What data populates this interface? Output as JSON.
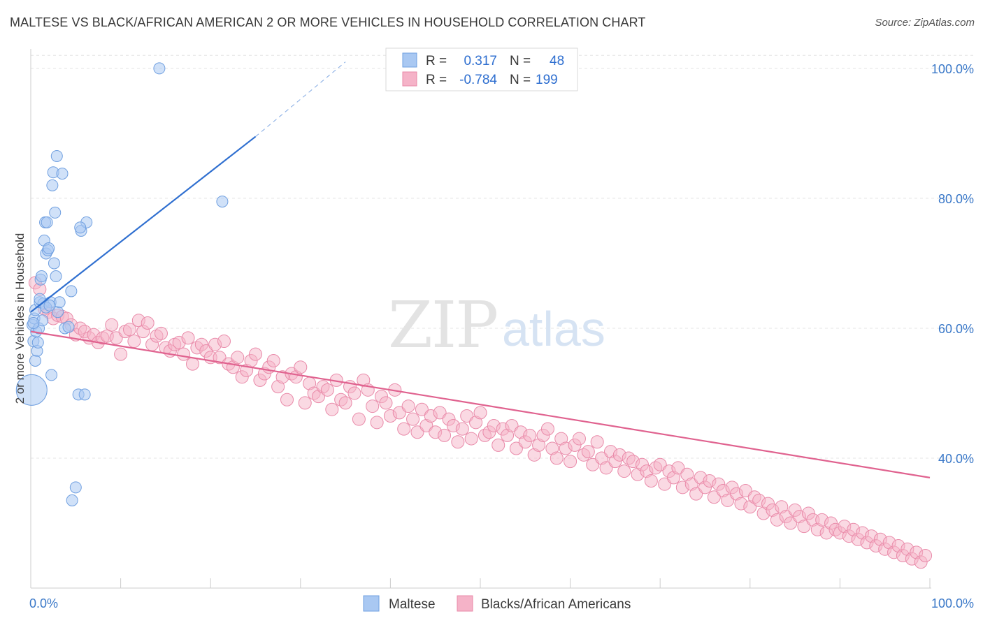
{
  "header": {
    "title": "MALTESE VS BLACK/AFRICAN AMERICAN 2 OR MORE VEHICLES IN HOUSEHOLD CORRELATION CHART",
    "source": "Source: ZipAtlas.com"
  },
  "watermark": {
    "zip": "ZIP",
    "atlas": "atlas"
  },
  "colors": {
    "blue_fill": "#a9c8f2",
    "blue_stroke": "#6f9fe0",
    "blue_line": "#2f6fd0",
    "pink_fill": "#f5b3c8",
    "pink_stroke": "#e98aa9",
    "pink_line": "#e0628f",
    "grid": "#e4e4e4",
    "tick_text": "#3a78c8"
  },
  "legend": {
    "rows": [
      {
        "r_label": "R =",
        "r_value": "0.317",
        "n_label": "N =",
        "n_value": "48",
        "color": "#a9c8f2"
      },
      {
        "r_label": "R =",
        "r_value": "-0.784",
        "n_label": "N =",
        "n_value": "199",
        "color": "#f5b3c8"
      }
    ]
  },
  "chart_data": {
    "type": "scatter",
    "title": "MALTESE VS BLACK/AFRICAN AMERICAN 2 OR MORE VEHICLES IN HOUSEHOLD CORRELATION CHART",
    "xlabel": "",
    "ylabel": "2 or more Vehicles in Household",
    "xlim": [
      0,
      100
    ],
    "ylim": [
      20,
      103
    ],
    "x_tick_labels": [
      "0.0%",
      "100.0%"
    ],
    "y_ticks": [
      40,
      60,
      80,
      100
    ],
    "y_tick_labels": [
      "40.0%",
      "60.0%",
      "80.0%",
      "100.0%"
    ],
    "grid": true,
    "legend_position": "bottom",
    "series": [
      {
        "name": "Maltese",
        "r": 0.317,
        "n": 48,
        "trend": {
          "x": [
            0,
            25
          ],
          "y": [
            62.5,
            89.5
          ],
          "dashed_to": [
            35,
            101
          ]
        },
        "points": [
          [
            0.1,
            50.5
          ],
          [
            0.2,
            60.5
          ],
          [
            0.3,
            58.0
          ],
          [
            0.4,
            61.5
          ],
          [
            0.5,
            62.8
          ],
          [
            0.6,
            59.5
          ],
          [
            0.7,
            56.5
          ],
          [
            0.8,
            57.8
          ],
          [
            0.9,
            60.0
          ],
          [
            1.0,
            64.0
          ],
          [
            1.1,
            67.5
          ],
          [
            1.2,
            68.0
          ],
          [
            1.3,
            61.2
          ],
          [
            1.4,
            63.8
          ],
          [
            1.5,
            73.5
          ],
          [
            1.6,
            76.3
          ],
          [
            1.7,
            71.5
          ],
          [
            1.8,
            76.3
          ],
          [
            1.9,
            72.0
          ],
          [
            2.0,
            72.3
          ],
          [
            2.2,
            64.0
          ],
          [
            2.3,
            52.8
          ],
          [
            2.4,
            82.0
          ],
          [
            2.5,
            84.0
          ],
          [
            2.6,
            70.0
          ],
          [
            2.7,
            77.8
          ],
          [
            2.8,
            68.0
          ],
          [
            2.9,
            86.5
          ],
          [
            3.0,
            62.5
          ],
          [
            3.2,
            64.0
          ],
          [
            3.5,
            83.8
          ],
          [
            3.8,
            60.0
          ],
          [
            4.2,
            60.2
          ],
          [
            4.5,
            65.7
          ],
          [
            5.0,
            35.5
          ],
          [
            5.3,
            49.8
          ],
          [
            5.6,
            75.0
          ],
          [
            6.2,
            76.3
          ],
          [
            4.6,
            33.5
          ],
          [
            5.5,
            75.5
          ],
          [
            6.0,
            49.8
          ],
          [
            0.5,
            55.0
          ],
          [
            14.3,
            100.0
          ],
          [
            21.3,
            79.5
          ],
          [
            1.0,
            64.5
          ],
          [
            1.7,
            63.2
          ],
          [
            0.3,
            60.8
          ],
          [
            2.1,
            63.5
          ]
        ]
      },
      {
        "name": "Blacks/African Americans",
        "r": -0.784,
        "n": 199,
        "trend": {
          "x": [
            0,
            100
          ],
          "y": [
            59.5,
            37.0
          ]
        },
        "points": [
          [
            0.5,
            67.0
          ],
          [
            1.0,
            66.0
          ],
          [
            1.5,
            63.0
          ],
          [
            2.0,
            62.5
          ],
          [
            2.5,
            61.5
          ],
          [
            3.0,
            62.0
          ],
          [
            3.5,
            61.8
          ],
          [
            4.0,
            61.5
          ],
          [
            4.5,
            60.5
          ],
          [
            5.0,
            59.0
          ],
          [
            5.5,
            60.0
          ],
          [
            6.0,
            59.5
          ],
          [
            6.5,
            58.5
          ],
          [
            7.0,
            59.0
          ],
          [
            7.5,
            57.8
          ],
          [
            8.0,
            58.5
          ],
          [
            8.5,
            58.8
          ],
          [
            9.0,
            60.5
          ],
          [
            9.5,
            58.5
          ],
          [
            10.0,
            56.0
          ],
          [
            10.5,
            59.5
          ],
          [
            11.0,
            59.8
          ],
          [
            11.5,
            58.0
          ],
          [
            12.0,
            61.2
          ],
          [
            12.5,
            59.5
          ],
          [
            13.0,
            60.8
          ],
          [
            13.5,
            57.5
          ],
          [
            14.0,
            58.8
          ],
          [
            14.5,
            59.2
          ],
          [
            15.0,
            57.0
          ],
          [
            15.5,
            56.5
          ],
          [
            16.0,
            57.5
          ],
          [
            16.5,
            57.8
          ],
          [
            17.0,
            56.0
          ],
          [
            17.5,
            58.5
          ],
          [
            18.0,
            54.5
          ],
          [
            18.5,
            57.0
          ],
          [
            19.0,
            57.5
          ],
          [
            19.5,
            56.5
          ],
          [
            20.0,
            55.5
          ],
          [
            20.5,
            57.5
          ],
          [
            21.0,
            55.5
          ],
          [
            21.5,
            58.0
          ],
          [
            22.0,
            54.5
          ],
          [
            22.5,
            54.0
          ],
          [
            23.0,
            55.5
          ],
          [
            23.5,
            52.5
          ],
          [
            24.0,
            53.5
          ],
          [
            24.5,
            55.0
          ],
          [
            25.0,
            56.0
          ],
          [
            25.5,
            52.0
          ],
          [
            26.0,
            53.0
          ],
          [
            26.5,
            54.0
          ],
          [
            27.0,
            55.0
          ],
          [
            27.5,
            51.0
          ],
          [
            28.0,
            52.5
          ],
          [
            28.5,
            49.0
          ],
          [
            29.0,
            53.0
          ],
          [
            29.5,
            52.5
          ],
          [
            30.0,
            54.0
          ],
          [
            30.5,
            48.5
          ],
          [
            31.0,
            51.5
          ],
          [
            31.5,
            50.0
          ],
          [
            32.0,
            49.5
          ],
          [
            32.5,
            51.0
          ],
          [
            33.0,
            50.5
          ],
          [
            33.5,
            47.5
          ],
          [
            34.0,
            52.0
          ],
          [
            34.5,
            49.0
          ],
          [
            35.0,
            48.5
          ],
          [
            35.5,
            51.0
          ],
          [
            36.0,
            50.0
          ],
          [
            36.5,
            46.0
          ],
          [
            37.0,
            52.0
          ],
          [
            37.5,
            50.5
          ],
          [
            38.0,
            48.0
          ],
          [
            38.5,
            45.5
          ],
          [
            39.0,
            49.5
          ],
          [
            39.5,
            48.5
          ],
          [
            40.0,
            46.5
          ],
          [
            40.5,
            50.5
          ],
          [
            41.0,
            47.0
          ],
          [
            41.5,
            44.5
          ],
          [
            42.0,
            48.0
          ],
          [
            42.5,
            46.0
          ],
          [
            43.0,
            44.0
          ],
          [
            43.5,
            47.5
          ],
          [
            44.0,
            45.0
          ],
          [
            44.5,
            46.5
          ],
          [
            45.0,
            44.0
          ],
          [
            45.5,
            47.0
          ],
          [
            46.0,
            43.5
          ],
          [
            46.5,
            46.0
          ],
          [
            47.0,
            45.0
          ],
          [
            47.5,
            42.5
          ],
          [
            48.0,
            44.5
          ],
          [
            48.5,
            46.5
          ],
          [
            49.0,
            43.0
          ],
          [
            49.5,
            45.5
          ],
          [
            50.0,
            47.0
          ],
          [
            50.5,
            43.5
          ],
          [
            51.0,
            44.0
          ],
          [
            51.5,
            45.0
          ],
          [
            52.0,
            42.0
          ],
          [
            52.5,
            44.5
          ],
          [
            53.0,
            43.5
          ],
          [
            53.5,
            45.0
          ],
          [
            54.0,
            41.5
          ],
          [
            54.5,
            44.0
          ],
          [
            55.0,
            42.5
          ],
          [
            55.5,
            43.5
          ],
          [
            56.0,
            40.5
          ],
          [
            56.5,
            42.0
          ],
          [
            57.0,
            43.5
          ],
          [
            57.5,
            44.5
          ],
          [
            58.0,
            41.5
          ],
          [
            58.5,
            40.0
          ],
          [
            59.0,
            43.0
          ],
          [
            59.5,
            41.5
          ],
          [
            60.0,
            39.5
          ],
          [
            60.5,
            42.0
          ],
          [
            61.0,
            43.0
          ],
          [
            61.5,
            40.5
          ],
          [
            62.0,
            41.0
          ],
          [
            62.5,
            39.0
          ],
          [
            63.0,
            42.5
          ],
          [
            63.5,
            40.0
          ],
          [
            64.0,
            38.5
          ],
          [
            64.5,
            41.0
          ],
          [
            65.0,
            39.5
          ],
          [
            65.5,
            40.5
          ],
          [
            66.0,
            38.0
          ],
          [
            66.5,
            40.0
          ],
          [
            67.0,
            39.5
          ],
          [
            67.5,
            37.5
          ],
          [
            68.0,
            39.0
          ],
          [
            68.5,
            38.0
          ],
          [
            69.0,
            36.5
          ],
          [
            69.5,
            38.5
          ],
          [
            70.0,
            39.0
          ],
          [
            70.5,
            36.0
          ],
          [
            71.0,
            38.0
          ],
          [
            71.5,
            37.0
          ],
          [
            72.0,
            38.5
          ],
          [
            72.5,
            35.5
          ],
          [
            73.0,
            37.5
          ],
          [
            73.5,
            36.0
          ],
          [
            74.0,
            34.5
          ],
          [
            74.5,
            37.0
          ],
          [
            75.0,
            35.5
          ],
          [
            75.5,
            36.5
          ],
          [
            76.0,
            34.0
          ],
          [
            76.5,
            36.0
          ],
          [
            77.0,
            35.0
          ],
          [
            77.5,
            33.5
          ],
          [
            78.0,
            35.5
          ],
          [
            78.5,
            34.5
          ],
          [
            79.0,
            33.0
          ],
          [
            79.5,
            35.0
          ],
          [
            80.0,
            32.5
          ],
          [
            80.5,
            34.0
          ],
          [
            81.0,
            33.5
          ],
          [
            81.5,
            31.5
          ],
          [
            82.0,
            33.0
          ],
          [
            82.5,
            32.0
          ],
          [
            83.0,
            30.5
          ],
          [
            83.5,
            32.5
          ],
          [
            84.0,
            31.0
          ],
          [
            84.5,
            30.0
          ],
          [
            85.0,
            32.0
          ],
          [
            85.5,
            31.0
          ],
          [
            86.0,
            29.5
          ],
          [
            86.5,
            31.5
          ],
          [
            87.0,
            30.5
          ],
          [
            87.5,
            29.0
          ],
          [
            88.0,
            30.5
          ],
          [
            88.5,
            28.5
          ],
          [
            89.0,
            30.0
          ],
          [
            89.5,
            29.0
          ],
          [
            90.0,
            28.5
          ],
          [
            90.5,
            29.5
          ],
          [
            91.0,
            28.0
          ],
          [
            91.5,
            29.0
          ],
          [
            92.0,
            27.5
          ],
          [
            92.5,
            28.5
          ],
          [
            93.0,
            27.0
          ],
          [
            93.5,
            28.0
          ],
          [
            94.0,
            26.5
          ],
          [
            94.5,
            27.5
          ],
          [
            95.0,
            26.0
          ],
          [
            95.5,
            27.0
          ],
          [
            96.0,
            25.5
          ],
          [
            96.5,
            26.5
          ],
          [
            97.0,
            25.0
          ],
          [
            97.5,
            26.0
          ],
          [
            98.0,
            24.5
          ],
          [
            98.5,
            25.5
          ],
          [
            99.0,
            24.0
          ],
          [
            99.5,
            25.0
          ]
        ]
      }
    ]
  },
  "bottom_legend": [
    {
      "label": "Maltese",
      "color": "#a9c8f2"
    },
    {
      "label": "Blacks/African Americans",
      "color": "#f5b3c8"
    }
  ]
}
